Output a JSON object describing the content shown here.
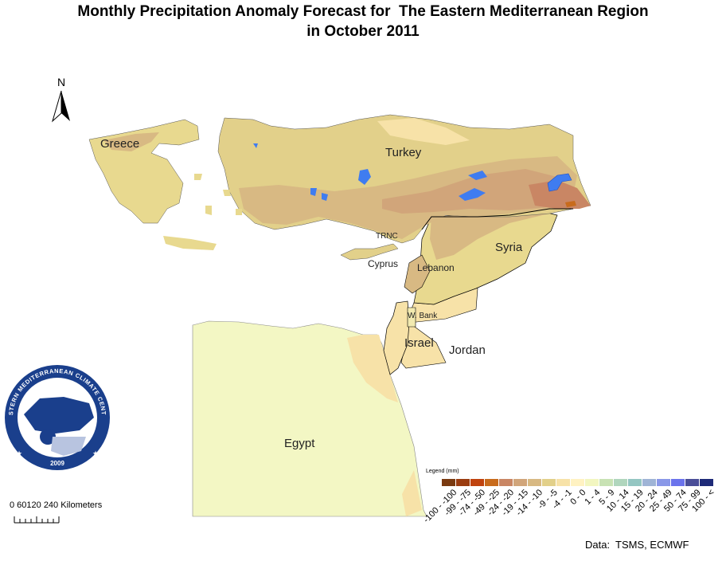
{
  "title": {
    "line1": "Monthly Precipitation Anomaly Forecast for  The Eastern Mediterranean Region",
    "line2": "in October 2011"
  },
  "north_arrow": {
    "label": "N",
    "icon": "north-arrow-icon"
  },
  "countries": {
    "greece": "Greece",
    "turkey": "Turkey",
    "syria": "Syria",
    "trnc": "TRNC",
    "cyprus": "Cyprus",
    "lebanon": "Lebanon",
    "west_bank": "W. Bank",
    "israel": "Israel",
    "jordan": "Jordan",
    "egypt": "Egypt"
  },
  "scale": {
    "ticks": "0 60120  240 Kilometers"
  },
  "logo": {
    "text": "EASTERN MEDITERRANEAN CLIMATE CENTRE",
    "year": "2009"
  },
  "legend": {
    "title": "Legend (mm)",
    "classes": [
      {
        "label": "-100 - -100",
        "color": "#7a3a10"
      },
      {
        "label": "-99 - -75",
        "color": "#9a3c10"
      },
      {
        "label": "-74 - -50",
        "color": "#c0430e"
      },
      {
        "label": "-49 - -25",
        "color": "#c86b1c"
      },
      {
        "label": "-24 - -20",
        "color": "#c98664"
      },
      {
        "label": "-19 - -15",
        "color": "#d1a57a"
      },
      {
        "label": "-14 - -10",
        "color": "#d8b983"
      },
      {
        "label": "-9 - -5",
        "color": "#e2d08a"
      },
      {
        "label": "-4 - -1",
        "color": "#f7e2a8"
      },
      {
        "label": "0 - 0",
        "color": "#fff2c2"
      },
      {
        "label": "1 - 4",
        "color": "#f2f6c0"
      },
      {
        "label": "5 - 9",
        "color": "#c8e2b4"
      },
      {
        "label": "10 - 14",
        "color": "#b0d6bd"
      },
      {
        "label": "15 - 19",
        "color": "#94c6c2"
      },
      {
        "label": "20 - 24",
        "color": "#9fb4d6"
      },
      {
        "label": "25 - 49",
        "color": "#8a98e8"
      },
      {
        "label": "50 - 74",
        "color": "#6b73ec"
      },
      {
        "label": "75 - 99",
        "color": "#4a4e98"
      },
      {
        "label": "100 - <",
        "color": "#1e2a78"
      }
    ]
  },
  "credit": "Data:  TSMS, ECMWF",
  "colors": {
    "egypt_fill": "#f3f7c4",
    "light_tan": "#f7e2a8",
    "mid_tan": "#e2d08a",
    "brown": "#c98664",
    "lake": "#3f7cf0",
    "border": "#000000",
    "logo_blue": "#1a3f8c"
  }
}
